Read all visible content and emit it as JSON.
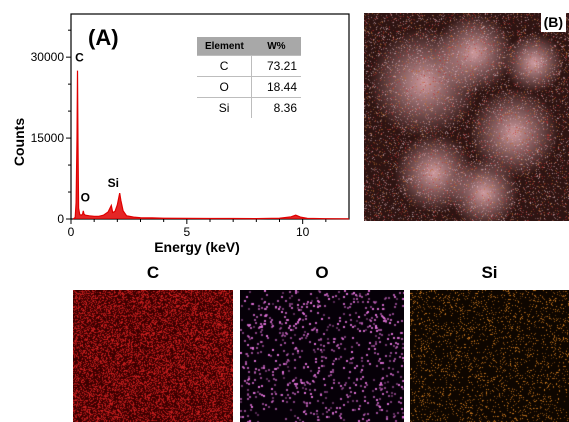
{
  "chart_data": {
    "type": "line",
    "panel_label": "(A)",
    "xlabel": "Energy (keV)",
    "ylabel": "Counts",
    "xlim": [
      0,
      12
    ],
    "ylim": [
      0,
      38000
    ],
    "x_ticks": [
      0,
      5,
      10
    ],
    "y_ticks": [
      0,
      15000,
      30000
    ],
    "grid": false,
    "series_color": "#e00000",
    "peak_labels": [
      {
        "text": "C",
        "x": 0.28,
        "y": 28500
      },
      {
        "text": "O",
        "x": 0.53,
        "y": 2500
      },
      {
        "text": "Si",
        "x": 1.74,
        "y": 5200
      }
    ],
    "x": [
      0.1,
      0.18,
      0.22,
      0.26,
      0.28,
      0.3,
      0.33,
      0.38,
      0.45,
      0.5,
      0.53,
      0.56,
      0.62,
      0.8,
      1.0,
      1.2,
      1.4,
      1.6,
      1.74,
      1.8,
      1.9,
      2.0,
      2.1,
      2.15,
      2.25,
      2.4,
      2.7,
      3.0,
      3.5,
      4.0,
      5.0,
      6.0,
      7.0,
      8.0,
      9.0,
      9.5,
      9.7,
      9.9,
      10.2,
      11.0,
      12.0
    ],
    "y": [
      0,
      300,
      3000,
      15000,
      27500,
      14000,
      2000,
      800,
      700,
      900,
      1500,
      900,
      700,
      600,
      500,
      500,
      700,
      1300,
      2500,
      1200,
      1400,
      2600,
      4800,
      3500,
      1500,
      600,
      350,
      250,
      200,
      150,
      120,
      100,
      90,
      80,
      150,
      400,
      700,
      350,
      120,
      60,
      40
    ]
  },
  "composition_table": {
    "headers": [
      "Element",
      "W%"
    ],
    "rows": [
      {
        "element": "C",
        "wt": "73.21"
      },
      {
        "element": "O",
        "wt": "18.44"
      },
      {
        "element": "Si",
        "wt": "8.36"
      }
    ]
  },
  "maps": {
    "overlay_label": "(B)",
    "items": [
      {
        "label": "C",
        "color": "#d42020"
      },
      {
        "label": "O",
        "color": "#e070d8"
      },
      {
        "label": "Si",
        "color": "#d88020"
      }
    ]
  }
}
